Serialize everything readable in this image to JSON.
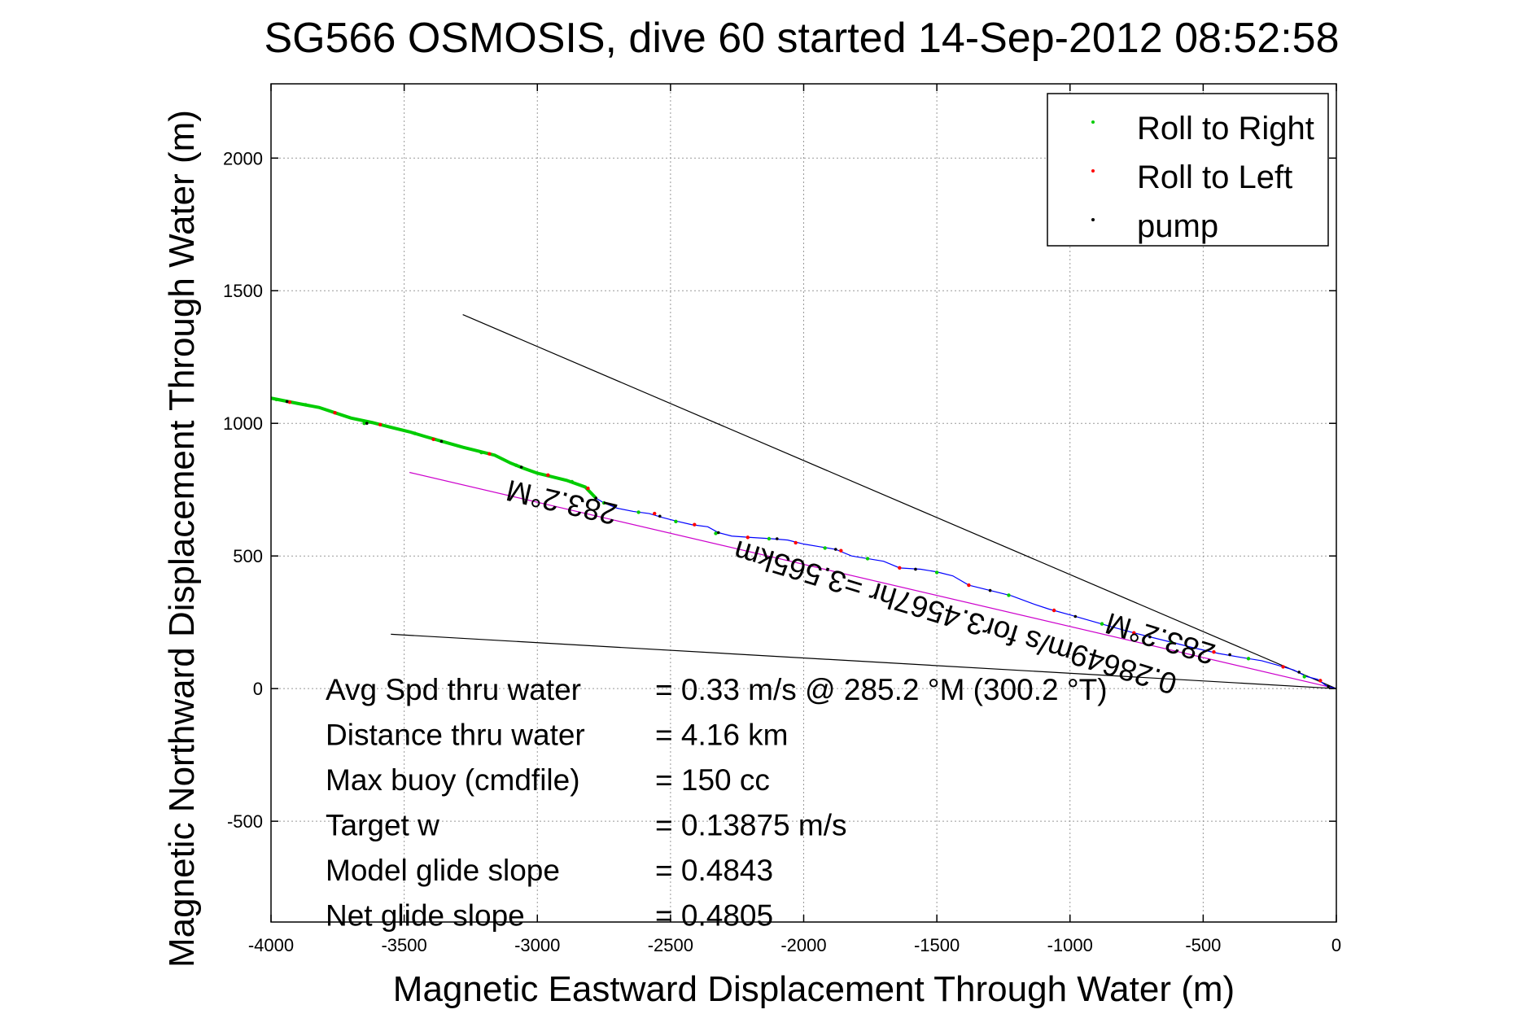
{
  "chart_data": {
    "type": "line",
    "title": "SG566 OSMOSIS, dive 60 started 14-Sep-2012 08:52:58",
    "xlabel": "Magnetic Eastward Displacement Through Water (m)",
    "ylabel": "Magnetic Northward Displacement Through Water (m)",
    "xlim": [
      -4000,
      0
    ],
    "ylim": [
      -880,
      2280
    ],
    "x_ticks": [
      -4000,
      -3500,
      -3000,
      -2500,
      -2000,
      -1500,
      -1000,
      -500,
      0
    ],
    "x_tick_labels": [
      "-4000",
      "-3500",
      "-3000",
      "-2500",
      "-2000",
      "-1500",
      "-1000",
      "-500",
      "0"
    ],
    "y_ticks": [
      -500,
      0,
      500,
      1000,
      1500,
      2000
    ],
    "y_tick_labels": [
      "-500",
      "0",
      "500",
      "1000",
      "1500",
      "2000"
    ],
    "grid": true,
    "legend_position": "top-right",
    "legend": [
      {
        "label": "Roll to Right",
        "color": "#00cc00"
      },
      {
        "label": "Roll to Left",
        "color": "#ff0000"
      },
      {
        "label": "pump",
        "color": "#000000"
      }
    ],
    "track_color": "#00cc00",
    "track_blue_color": "#0000ff",
    "track": [
      [
        -4000,
        1095
      ],
      [
        -3900,
        1075
      ],
      [
        -3820,
        1060
      ],
      [
        -3760,
        1040
      ],
      [
        -3700,
        1020
      ],
      [
        -3620,
        1003
      ],
      [
        -3550,
        985
      ],
      [
        -3480,
        968
      ],
      [
        -3420,
        950
      ],
      [
        -3350,
        930
      ],
      [
        -3280,
        910
      ],
      [
        -3220,
        895
      ],
      [
        -3160,
        880
      ],
      [
        -3100,
        850
      ],
      [
        -3050,
        830
      ],
      [
        -3000,
        812
      ],
      [
        -2950,
        800
      ],
      [
        -2890,
        785
      ],
      [
        -2820,
        760
      ],
      [
        -2780,
        718
      ],
      [
        -2750,
        700
      ],
      [
        -2700,
        680
      ],
      [
        -2640,
        668
      ],
      [
        -2580,
        660
      ],
      [
        -2530,
        645
      ],
      [
        -2480,
        632
      ],
      [
        -2420,
        618
      ],
      [
        -2360,
        610
      ],
      [
        -2320,
        588
      ],
      [
        -2270,
        575
      ],
      [
        -2200,
        570
      ],
      [
        -2120,
        565
      ],
      [
        -2060,
        560
      ],
      [
        -2000,
        545
      ],
      [
        -1940,
        535
      ],
      [
        -1880,
        525
      ],
      [
        -1820,
        500
      ],
      [
        -1760,
        490
      ],
      [
        -1700,
        480
      ],
      [
        -1640,
        455
      ],
      [
        -1560,
        450
      ],
      [
        -1500,
        440
      ],
      [
        -1440,
        425
      ],
      [
        -1380,
        390
      ],
      [
        -1300,
        370
      ],
      [
        -1220,
        350
      ],
      [
        -1140,
        320
      ],
      [
        -1080,
        300
      ],
      [
        -1000,
        278
      ],
      [
        -920,
        255
      ],
      [
        -840,
        232
      ],
      [
        -760,
        210
      ],
      [
        -680,
        190
      ],
      [
        -600,
        170
      ],
      [
        -520,
        150
      ],
      [
        -440,
        132
      ],
      [
        -360,
        118
      ],
      [
        -280,
        105
      ],
      [
        -220,
        88
      ],
      [
        -160,
        70
      ],
      [
        -110,
        45
      ],
      [
        -70,
        35
      ],
      [
        -40,
        12
      ],
      [
        -20,
        5
      ],
      [
        0,
        0
      ]
    ],
    "roll_right_points": [
      [
        -3980,
        1090
      ],
      [
        -3870,
        1070
      ],
      [
        -3650,
        1000
      ],
      [
        -3460,
        962
      ],
      [
        -3210,
        890
      ],
      [
        -3080,
        842
      ],
      [
        -2870,
        780
      ],
      [
        -2750,
        700
      ],
      [
        -2620,
        665
      ],
      [
        -2480,
        630
      ],
      [
        -2330,
        585
      ],
      [
        -2130,
        565
      ],
      [
        -1920,
        530
      ],
      [
        -1760,
        490
      ],
      [
        -1500,
        438
      ],
      [
        -1230,
        352
      ],
      [
        -880,
        244
      ],
      [
        -620,
        175
      ],
      [
        -330,
        113
      ],
      [
        -120,
        45
      ]
    ],
    "roll_left_points": [
      [
        -3930,
        1080
      ],
      [
        -3760,
        1040
      ],
      [
        -3590,
        995
      ],
      [
        -3390,
        940
      ],
      [
        -3180,
        885
      ],
      [
        -2960,
        805
      ],
      [
        -2810,
        755
      ],
      [
        -2560,
        660
      ],
      [
        -2410,
        618
      ],
      [
        -2210,
        570
      ],
      [
        -2030,
        550
      ],
      [
        -1860,
        520
      ],
      [
        -1640,
        455
      ],
      [
        -1380,
        390
      ],
      [
        -1060,
        295
      ],
      [
        -760,
        210
      ],
      [
        -460,
        138
      ],
      [
        -200,
        82
      ],
      [
        -60,
        30
      ]
    ],
    "pump_points": [
      [
        -3940,
        1082
      ],
      [
        -3640,
        1000
      ],
      [
        -3360,
        932
      ],
      [
        -3060,
        835
      ],
      [
        -2780,
        718
      ],
      [
        -2540,
        650
      ],
      [
        -2320,
        588
      ],
      [
        -2100,
        565
      ],
      [
        -1880,
        525
      ],
      [
        -1580,
        450
      ],
      [
        -1300,
        370
      ],
      [
        -980,
        272
      ],
      [
        -700,
        195
      ],
      [
        -400,
        128
      ],
      [
        -140,
        62
      ],
      [
        -30,
        8
      ]
    ],
    "reference_lines": [
      {
        "color": "#000000",
        "points": [
          [
            -3280,
            1410
          ],
          [
            0,
            0
          ]
        ]
      },
      {
        "color": "#000000",
        "points": [
          [
            -3550,
            205
          ],
          [
            0,
            0
          ]
        ]
      },
      {
        "color": "#cc00cc",
        "points": [
          [
            -3480,
            815
          ],
          [
            0,
            0
          ]
        ]
      }
    ],
    "stats": [
      {
        "label": "Avg Spd thru water",
        "value": "=  0.33 m/s @ 285.2 °M (300.2 °T)"
      },
      {
        "label": "Distance thru water",
        "value": "=  4.16 km"
      },
      {
        "label": "Max buoy (cmdfile)",
        "value": "= 150 cc"
      },
      {
        "label": "Target w",
        "value": "= 0.13875 m/s"
      },
      {
        "label": "Model glide slope",
        "value": "= 0.4843"
      },
      {
        "label": "Net glide slope",
        "value": "= 0.4805"
      }
    ],
    "annotations": [
      {
        "text": "283.2°M",
        "x": -2900,
        "y": 740,
        "rotate": 193
      },
      {
        "text": "283.2°M",
        "x": -650,
        "y": 225,
        "rotate": 197
      },
      {
        "text": "0.28649m/s for3.4567hr =3.565km",
        "x": -1420,
        "y": 305,
        "rotate": 197
      }
    ]
  }
}
